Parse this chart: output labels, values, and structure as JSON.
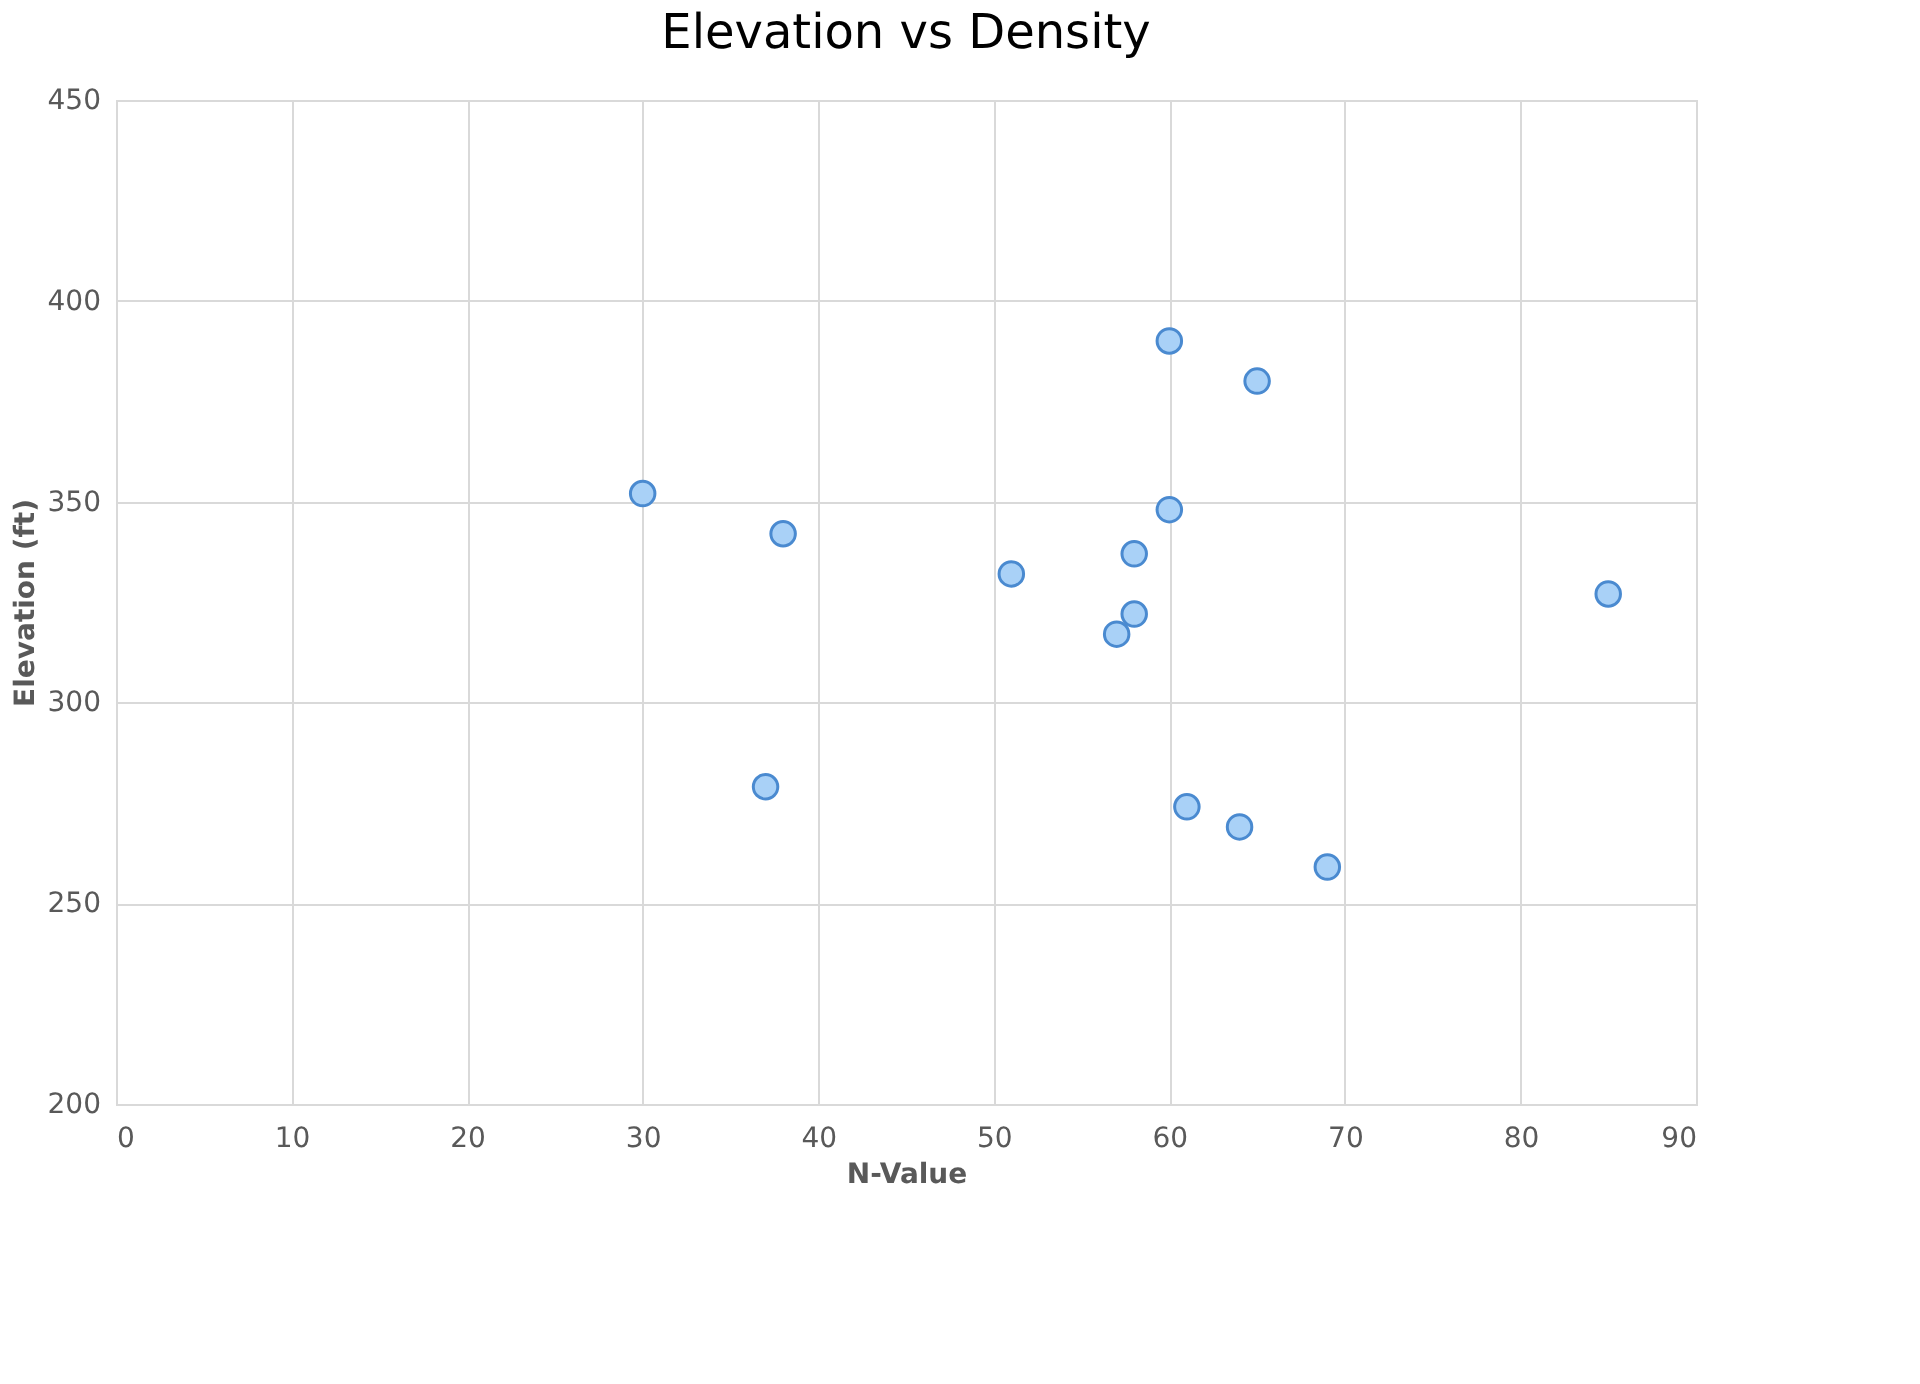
{
  "chart_data": {
    "type": "scatter",
    "title": "Elevation vs Density",
    "xlabel": "N-Value",
    "ylabel": "Elevation (ft)",
    "x": [
      30,
      38,
      37,
      51,
      57,
      58,
      58,
      60,
      60,
      61,
      64,
      65,
      69,
      85
    ],
    "series": [
      {
        "color": "#a9d1f7",
        "values": [
          352,
          342,
          279,
          332,
          317,
          322,
          337,
          348,
          390,
          274,
          269,
          380,
          259,
          327
        ]
      }
    ],
    "xlim": [
      0,
      90
    ],
    "xticks": [
      0,
      10,
      20,
      30,
      40,
      50,
      60,
      70,
      80,
      90
    ],
    "ylim": [
      200,
      450
    ],
    "yticks": [
      200,
      250,
      300,
      350,
      400,
      450
    ],
    "grid": true,
    "marker": "circle"
  }
}
